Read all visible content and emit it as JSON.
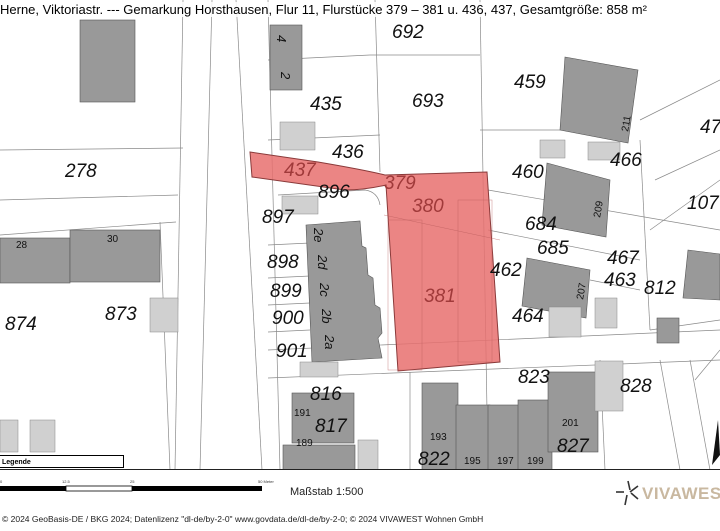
{
  "header": {
    "title": "Herne, Viktoriastr. --- Gemarkung Horsthausen, Flur 11, Flurstücke 379 – 381 u. 436, 437, Gesamtgröße: 858 m²"
  },
  "map": {
    "colors": {
      "highlight_fill": "#e8706f",
      "highlight_stroke": "#8a3a3a",
      "building": "#999999",
      "garage": "#cfcfcf",
      "parcel_line": "#888888"
    },
    "highlighted_parcels": [
      "379",
      "380",
      "381",
      "436",
      "437"
    ],
    "parcel_labels": [
      "278",
      "435",
      "693",
      "459",
      "47",
      "466",
      "460",
      "107",
      "436",
      "896",
      "897",
      "684",
      "685",
      "467",
      "463",
      "898",
      "899",
      "900",
      "901",
      "462",
      "812",
      "874",
      "873",
      "464",
      "823",
      "828",
      "816",
      "817",
      "827",
      "822",
      "692"
    ],
    "highlight_labels": [
      "437",
      "379",
      "380",
      "381"
    ],
    "house_numbers": [
      "28",
      "30",
      "191",
      "189",
      "193",
      "195",
      "197",
      "199",
      "201",
      "211",
      "209",
      "207"
    ],
    "rotated_house_numbers": [
      "2e",
      "2d",
      "2c",
      "2b",
      "2a",
      "4",
      "2"
    ],
    "north_arrow": "north-arrow-icon"
  },
  "legend": {
    "label": "Legende"
  },
  "footer": {
    "scalebar": {
      "ticks": [
        "0",
        "12.5",
        "25",
        "50 Meter"
      ]
    },
    "scale": "Maßstab 1:500",
    "logo": "VIVAWEST",
    "copyright": "© 2024 GeoBasis-DE / BKG  2024; Datenlizenz \"dl-de/by-2-0\" www.govdata.de/dl-de/by-2-0; © 2024 VIVAWEST Wohnen GmbH"
  }
}
